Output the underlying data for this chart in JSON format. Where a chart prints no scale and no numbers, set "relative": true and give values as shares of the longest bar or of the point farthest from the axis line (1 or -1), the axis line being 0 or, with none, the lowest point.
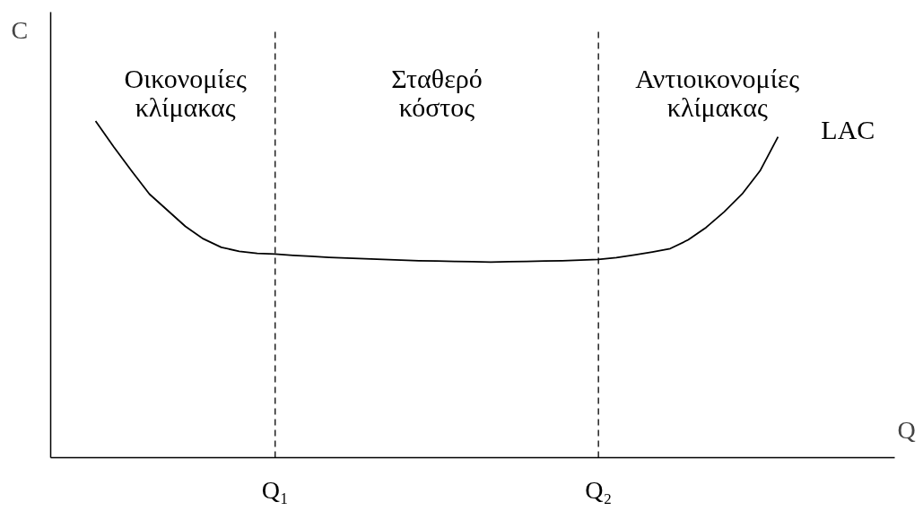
{
  "chart_data": {
    "type": "line",
    "relative": true,
    "xlabel": "Q",
    "ylabel": "C",
    "categories": [
      null,
      null,
      null,
      null,
      null,
      null,
      null,
      null,
      null,
      null,
      null,
      null,
      "Q₁",
      null,
      null,
      null,
      null,
      null,
      null,
      null,
      null,
      null,
      null,
      null,
      null,
      null,
      null,
      null,
      null,
      null,
      "Q₂",
      null,
      null,
      null,
      null,
      null,
      null,
      null,
      null,
      null,
      null,
      null,
      null,
      null,
      null,
      null,
      null
    ],
    "series": [
      {
        "name": "LAC",
        "color": "#000000",
        "values": [
          null,
          null,
          1.0,
          0.924,
          0.852,
          0.783,
          0.735,
          0.687,
          0.65,
          0.625,
          0.613,
          0.607,
          0.605,
          0.601,
          0.598,
          0.595,
          0.593,
          0.591,
          0.589,
          0.587,
          0.585,
          0.584,
          0.583,
          0.582,
          0.581,
          0.582,
          0.583,
          0.584,
          0.585,
          0.587,
          0.589,
          0.594,
          0.602,
          0.611,
          0.621,
          0.647,
          0.684,
          0.73,
          0.783,
          0.852,
          0.953,
          null,
          null,
          null,
          null,
          null,
          null
        ]
      }
    ],
    "tick_labels": "x",
    "ref_lines": [
      {
        "axis": "x",
        "value": "Q₁",
        "color": "#000000",
        "line_style": "dashed"
      },
      {
        "axis": "x",
        "value": "Q₂",
        "color": "#000000",
        "line_style": "dashed"
      }
    ],
    "annotations": [
      "Οικονομίες\nκλίμακας",
      "Σταθερό\nκόστος",
      "Αντιοικονομίες\nκλίμακας"
    ],
    "line_style": "solid",
    "marker": "none"
  }
}
